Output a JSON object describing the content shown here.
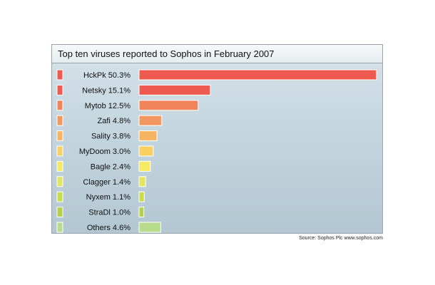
{
  "chart_data": {
    "type": "bar",
    "orientation": "horizontal",
    "title": "Top ten viruses reported to Sophos in February 2007",
    "categories": [
      "HckPk 50.3%",
      "Netsky 15.1%",
      "Mytob 12.5%",
      "Zafi 4.8%",
      "Sality 3.8%",
      "MyDoom 3.0%",
      "Bagle 2.4%",
      "Clagger 1.4%",
      "Nyxem 1.1%",
      "StraDl 1.0%",
      "Others 4.6%"
    ],
    "values": [
      50.3,
      15.1,
      12.5,
      4.8,
      3.8,
      3.0,
      2.4,
      1.4,
      1.1,
      1.0,
      4.6
    ],
    "colors": [
      "#ef5a50",
      "#ef5a50",
      "#f2845c",
      "#f39760",
      "#f6b462",
      "#f8cf60",
      "#f6ea60",
      "#e2e560",
      "#c8dc4c",
      "#b5cf48",
      "#b8dc8c"
    ],
    "xlim": [
      0,
      50.3
    ],
    "grid": false,
    "legend": "none"
  },
  "source": "Source: Sophos Plc   www.sophos.com"
}
